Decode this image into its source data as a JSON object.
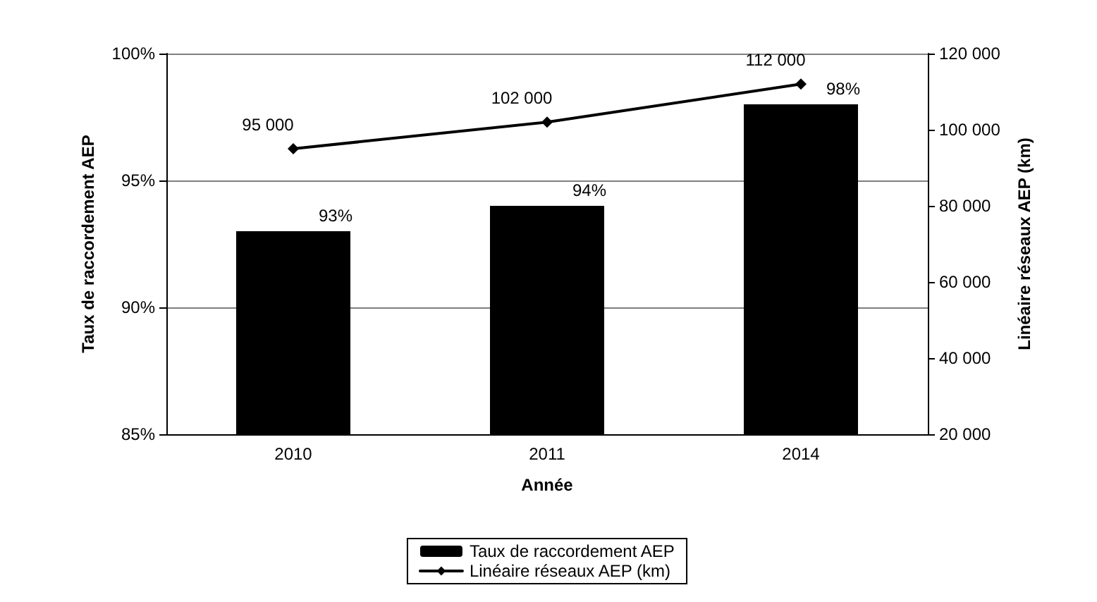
{
  "chart_data": {
    "type": "bar",
    "categories": [
      "2010",
      "2011",
      "2014"
    ],
    "series": [
      {
        "name": "Taux de raccordement AEP",
        "color": "#000000",
        "values": [
          93,
          94,
          98
        ],
        "value_labels": [
          "93%",
          "94%",
          "98%"
        ]
      },
      {
        "name": "Linéaire réseaux AEP (km)",
        "type": "line",
        "axis": "y2",
        "color": "#000000",
        "values": [
          95000,
          102000,
          112000
        ],
        "value_labels": [
          "95 000",
          "102 000",
          "112 000"
        ]
      }
    ],
    "xlabel": "Année",
    "ylabel": "Taux de raccordement AEP",
    "y2label": "Linéaire réseaux AEP (km)",
    "ylim": [
      85,
      100
    ],
    "yticks": [
      {
        "value": 85,
        "label": "85%"
      },
      {
        "value": 90,
        "label": "90%"
      },
      {
        "value": 95,
        "label": "95%"
      },
      {
        "value": 100,
        "label": "100%"
      }
    ],
    "y2lim": [
      20000,
      120000
    ],
    "y2ticks": [
      {
        "value": 20000,
        "label": "20 000"
      },
      {
        "value": 40000,
        "label": "40 000"
      },
      {
        "value": 60000,
        "label": "60 000"
      },
      {
        "value": 80000,
        "label": "80 000"
      },
      {
        "value": 100000,
        "label": "100 000"
      },
      {
        "value": 120000,
        "label": "120 000"
      }
    ],
    "grid": "y",
    "legend": "bottom",
    "marker": "diamond",
    "line_style": "solid"
  }
}
